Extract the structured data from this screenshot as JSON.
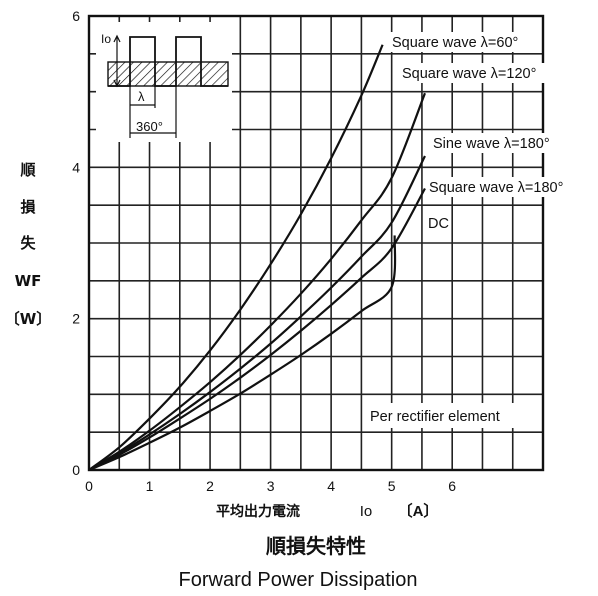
{
  "chart_data": {
    "type": "line",
    "title_jp": "順損失特性",
    "title_en": "Forward Power Dissipation",
    "xlabel_jp": "平均出力電流",
    "xlabel_sym": "Io",
    "xlabel_unit": "〔A〕",
    "ylabel_chars": [
      "順",
      "損",
      "失"
    ],
    "ylabel_sym": "WF",
    "ylabel_unit": "〔W〕",
    "xlim": [
      0,
      7.5
    ],
    "ylim": [
      0,
      6
    ],
    "x_ticks": [
      0,
      1,
      2,
      3,
      4,
      5,
      6
    ],
    "y_ticks": [
      0,
      2,
      4,
      6
    ],
    "annotation": "Per rectifier element",
    "inset": {
      "io_label": "Io",
      "lambda_label": "λ",
      "period_label": "360°"
    },
    "series": [
      {
        "name": "Square wave λ=60°",
        "x": [
          0,
          0.5,
          1,
          1.5,
          2,
          2.5,
          3,
          3.5,
          4,
          4.5,
          4.85
        ],
        "y": [
          0,
          0.3,
          0.68,
          1.1,
          1.58,
          2.12,
          2.72,
          3.38,
          4.12,
          4.95,
          5.62
        ]
      },
      {
        "name": "Square wave λ=120°",
        "x": [
          0,
          0.5,
          1,
          1.5,
          2,
          2.5,
          3,
          3.5,
          4,
          4.5,
          5,
          5.55
        ],
        "y": [
          0,
          0.24,
          0.52,
          0.83,
          1.16,
          1.52,
          1.91,
          2.33,
          2.79,
          3.3,
          3.86,
          4.98
        ]
      },
      {
        "name": "Sine wave λ=180°",
        "x": [
          0,
          0.5,
          1,
          1.5,
          2,
          2.5,
          3,
          3.5,
          4,
          4.5,
          5,
          5.55
        ],
        "y": [
          0,
          0.22,
          0.47,
          0.74,
          1.03,
          1.34,
          1.67,
          2.03,
          2.41,
          2.82,
          3.27,
          4.15
        ]
      },
      {
        "name": "Square wave λ=180°",
        "x": [
          0,
          0.5,
          1,
          1.5,
          2,
          2.5,
          3,
          3.5,
          4,
          4.5,
          5,
          5.55
        ],
        "y": [
          0,
          0.2,
          0.43,
          0.68,
          0.94,
          1.22,
          1.52,
          1.84,
          2.18,
          2.54,
          2.93,
          3.72
        ]
      },
      {
        "name": "DC",
        "x": [
          0,
          0.5,
          1,
          1.5,
          2,
          2.5,
          3,
          3.5,
          4,
          4.5,
          5,
          5.05
        ],
        "y": [
          0,
          0.17,
          0.36,
          0.56,
          0.78,
          1.01,
          1.26,
          1.52,
          1.8,
          2.1,
          2.42,
          3.1
        ]
      }
    ],
    "legend_texts": [
      "Square wave  λ=60°",
      "Square wave  λ=120°",
      "Sine wave  λ=180°",
      "Square wave  λ=180°",
      "DC"
    ]
  }
}
